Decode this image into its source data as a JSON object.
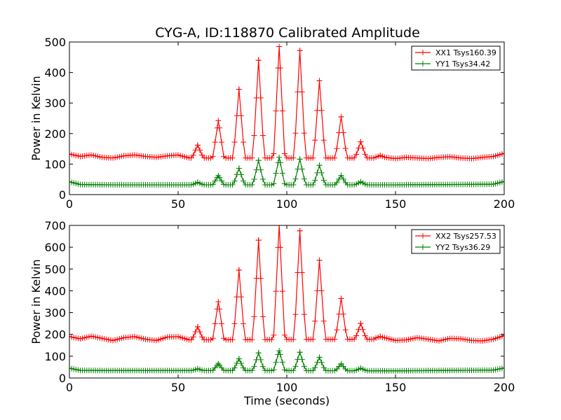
{
  "title": "CYG-A, ID:118870 Calibrated Amplitude",
  "chart_data": [
    {
      "type": "line",
      "ylabel": "Power in Kelvin",
      "xlabel": "",
      "xlim": [
        0,
        200
      ],
      "ylim": [
        0,
        500
      ],
      "xticks": [
        0,
        50,
        100,
        150,
        200
      ],
      "yticks": [
        0,
        100,
        200,
        300,
        400,
        500
      ],
      "legend_position": "top-right",
      "grid": false,
      "series": [
        {
          "name": "XX1 Tsys160.39",
          "color": "#ff0000",
          "baseline": [
            [
              0,
              133
            ],
            [
              5,
              125
            ],
            [
              10,
              130
            ],
            [
              15,
              122
            ],
            [
              20,
              120
            ],
            [
              25,
              127
            ],
            [
              30,
              130
            ],
            [
              35,
              125
            ],
            [
              40,
              122
            ],
            [
              45,
              127
            ],
            [
              50,
              130
            ],
            [
              55,
              120
            ],
            [
              60,
              120
            ],
            [
              140,
              120
            ],
            [
              145,
              122
            ],
            [
              150,
              118
            ],
            [
              155,
              122
            ],
            [
              160,
              120
            ],
            [
              165,
              118
            ],
            [
              170,
              122
            ],
            [
              175,
              124
            ],
            [
              180,
              120
            ],
            [
              185,
              118
            ],
            [
              190,
              122
            ],
            [
              195,
              125
            ],
            [
              200,
              135
            ]
          ],
          "peaks": [
            [
              59,
              162
            ],
            [
              68.5,
              242
            ],
            [
              78,
              345
            ],
            [
              87,
              440
            ],
            [
              96.5,
              485
            ],
            [
              106,
              472
            ],
            [
              115,
              373
            ],
            [
              125,
              255
            ],
            [
              134,
              173
            ],
            [
              143,
              128
            ]
          ]
        },
        {
          "name": "YY1 Tsys34.42",
          "color": "#008000",
          "baseline": [
            [
              0,
              42
            ],
            [
              5,
              33
            ],
            [
              20,
              32
            ],
            [
              50,
              32
            ],
            [
              100,
              32
            ],
            [
              150,
              32
            ],
            [
              195,
              34
            ],
            [
              200,
              43
            ]
          ],
          "peaks": [
            [
              59,
              40
            ],
            [
              68.5,
              62
            ],
            [
              78,
              86
            ],
            [
              87,
              112
            ],
            [
              96.5,
              122
            ],
            [
              106,
              116
            ],
            [
              115,
              96
            ],
            [
              125,
              63
            ],
            [
              134,
              42
            ]
          ]
        }
      ]
    },
    {
      "type": "line",
      "ylabel": "Power in Kelvin",
      "xlabel": "Time (seconds)",
      "xlim": [
        0,
        200
      ],
      "ylim": [
        0,
        700
      ],
      "xticks": [
        0,
        50,
        100,
        150,
        200
      ],
      "yticks": [
        0,
        100,
        200,
        300,
        400,
        500,
        600,
        700
      ],
      "legend_position": "top-right",
      "grid": false,
      "series": [
        {
          "name": "XX2 Tsys257.53",
          "color": "#ff0000",
          "baseline": [
            [
              0,
              190
            ],
            [
              5,
              180
            ],
            [
              10,
              192
            ],
            [
              15,
              182
            ],
            [
              20,
              172
            ],
            [
              25,
              185
            ],
            [
              30,
              190
            ],
            [
              35,
              178
            ],
            [
              40,
              172
            ],
            [
              45,
              188
            ],
            [
              50,
              190
            ],
            [
              55,
              175
            ],
            [
              60,
              175
            ],
            [
              140,
              178
            ],
            [
              145,
              185
            ],
            [
              150,
              172
            ],
            [
              155,
              175
            ],
            [
              160,
              185
            ],
            [
              165,
              178
            ],
            [
              170,
              170
            ],
            [
              175,
              182
            ],
            [
              180,
              180
            ],
            [
              185,
              172
            ],
            [
              190,
              170
            ],
            [
              195,
              178
            ],
            [
              200,
              195
            ]
          ],
          "peaks": [
            [
              59,
              235
            ],
            [
              68.5,
              350
            ],
            [
              78,
              495
            ],
            [
              87,
              632
            ],
            [
              96.5,
              700
            ],
            [
              106,
              675
            ],
            [
              115,
              540
            ],
            [
              125,
              365
            ],
            [
              134,
              250
            ],
            [
              143,
              190
            ]
          ]
        },
        {
          "name": "YY2 Tsys36.29",
          "color": "#008000",
          "baseline": [
            [
              0,
              45
            ],
            [
              5,
              35
            ],
            [
              20,
              34
            ],
            [
              50,
              34
            ],
            [
              100,
              34
            ],
            [
              150,
              33
            ],
            [
              195,
              36
            ],
            [
              200,
              46
            ]
          ],
          "peaks": [
            [
              59,
              42
            ],
            [
              68.5,
              65
            ],
            [
              78,
              88
            ],
            [
              87,
              115
            ],
            [
              96.5,
              125
            ],
            [
              106,
              118
            ],
            [
              115,
              95
            ],
            [
              125,
              65
            ],
            [
              134,
              45
            ]
          ]
        }
      ]
    }
  ]
}
